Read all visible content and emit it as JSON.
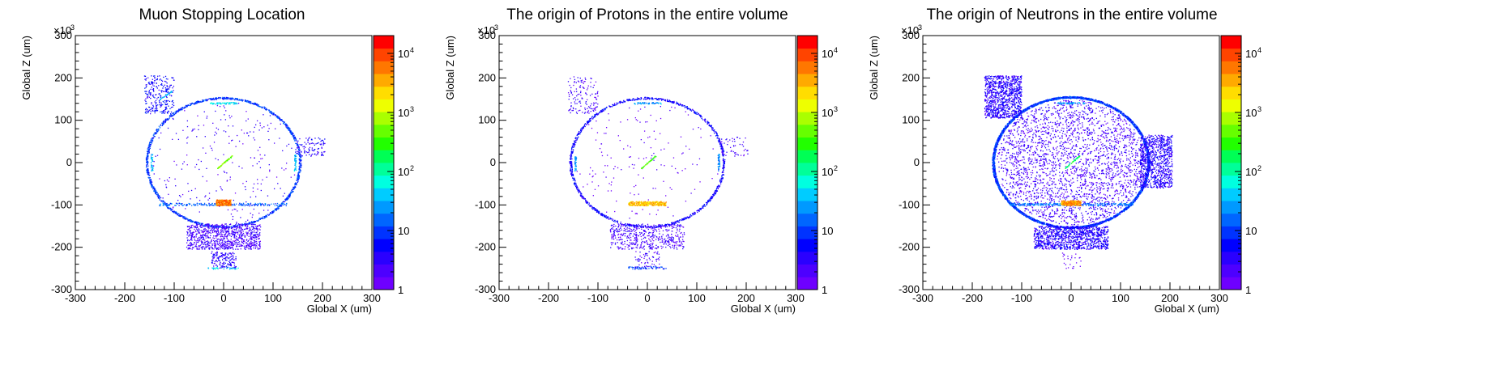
{
  "colors": {
    "palette": [
      "#6e00ff",
      "#4d00ff",
      "#2a00ff",
      "#0000ff",
      "#0033ff",
      "#0066ff",
      "#0099ff",
      "#00ccff",
      "#00ffe0",
      "#00ff99",
      "#00ff55",
      "#22ff00",
      "#66ff00",
      "#aaff00",
      "#eeff00",
      "#ffdd00",
      "#ffaa00",
      "#ff7700",
      "#ff4400",
      "#ff0000"
    ],
    "frame": "#000000",
    "background": "#ffffff"
  },
  "chart_data": [
    {
      "type": "heatmap",
      "title": "Muon Stopping Location",
      "xlabel": "Global X (um)",
      "ylabel": "Global Z (um)",
      "xlim": [
        -300,
        300
      ],
      "ylim": [
        -300,
        300
      ],
      "x_ticks": [
        "-300",
        "-200",
        "-100",
        "0",
        "100",
        "200",
        "300"
      ],
      "y_ticks": [
        "-300",
        "-200",
        "-100",
        "0",
        "100",
        "200",
        "300"
      ],
      "y_multiplier": "×10",
      "y_multiplier_exp": "3",
      "z_scale": "log",
      "z_range": [
        1,
        20000
      ],
      "z_ticks": [
        {
          "value": 1,
          "base": "1",
          "exp": ""
        },
        {
          "value": 10,
          "base": "10",
          "exp": ""
        },
        {
          "value": 100,
          "base": "10",
          "exp": "2"
        },
        {
          "value": 1000,
          "base": "10",
          "exp": "3"
        },
        {
          "value": 10000,
          "base": "10",
          "exp": "4"
        }
      ],
      "regions": [
        {
          "shape": "ellipse-outline",
          "cx": 0,
          "cy": 0,
          "rx": 155,
          "ry": 152,
          "density": 1300,
          "weight": 8
        },
        {
          "shape": "ellipse-fill",
          "cx": 0,
          "cy": 0,
          "rx": 150,
          "ry": 148,
          "density": 250,
          "weight": 2
        },
        {
          "shape": "box",
          "x": [
            -160,
            -100
          ],
          "y": [
            115,
            205
          ],
          "density": 260,
          "weight": 4
        },
        {
          "shape": "box",
          "x": [
            145,
            205
          ],
          "y": [
            15,
            60
          ],
          "density": 110,
          "weight": 3
        },
        {
          "shape": "box",
          "x": [
            -75,
            75
          ],
          "y": [
            -205,
            -145
          ],
          "density": 900,
          "weight": 2
        },
        {
          "shape": "box",
          "x": [
            -25,
            25
          ],
          "y": [
            -250,
            -210
          ],
          "density": 160,
          "weight": 3
        },
        {
          "shape": "line",
          "p1": [
            -130,
            148
          ],
          "p2": [
            -105,
            168
          ],
          "density": 40,
          "weight": 30
        },
        {
          "shape": "band",
          "x": [
            -130,
            130
          ],
          "y": [
            -102,
            -96
          ],
          "density": 200,
          "weight": 12
        },
        {
          "shape": "band",
          "x": [
            -15,
            15
          ],
          "y": [
            -102,
            -88
          ],
          "density": 260,
          "weight": 5000
        },
        {
          "shape": "band",
          "x": [
            -28,
            28
          ],
          "y": [
            138,
            142
          ],
          "density": 60,
          "weight": 40
        },
        {
          "shape": "band",
          "x": [
            -35,
            35
          ],
          "y": [
            -252,
            -248
          ],
          "density": 30,
          "weight": 40
        },
        {
          "shape": "band",
          "x": [
            -147,
            -143
          ],
          "y": [
            -20,
            20
          ],
          "density": 40,
          "weight": 30
        },
        {
          "shape": "band",
          "x": [
            143,
            147
          ],
          "y": [
            -20,
            20
          ],
          "density": 40,
          "weight": 30
        },
        {
          "shape": "line",
          "p1": [
            -12,
            -14
          ],
          "p2": [
            18,
            16
          ],
          "density": 60,
          "weight": 400
        }
      ]
    },
    {
      "type": "heatmap",
      "title": "The origin of Protons in the entire volume",
      "xlabel": "Global X (um)",
      "ylabel": "Global Z (um)",
      "xlim": [
        -300,
        300
      ],
      "ylim": [
        -300,
        300
      ],
      "x_ticks": [
        "-300",
        "-200",
        "-100",
        "0",
        "100",
        "200",
        "300"
      ],
      "y_ticks": [
        "-300",
        "-200",
        "-100",
        "0",
        "100",
        "200",
        "300"
      ],
      "y_multiplier": "×10",
      "y_multiplier_exp": "3",
      "z_scale": "log",
      "z_range": [
        1,
        20000
      ],
      "z_ticks": [
        {
          "value": 1,
          "base": "1",
          "exp": ""
        },
        {
          "value": 10,
          "base": "10",
          "exp": ""
        },
        {
          "value": 100,
          "base": "10",
          "exp": "2"
        },
        {
          "value": 1000,
          "base": "10",
          "exp": "3"
        },
        {
          "value": 10000,
          "base": "10",
          "exp": "4"
        }
      ],
      "regions": [
        {
          "shape": "ellipse-outline",
          "cx": 0,
          "cy": 0,
          "rx": 155,
          "ry": 152,
          "density": 1100,
          "weight": 4
        },
        {
          "shape": "ellipse-fill",
          "cx": 0,
          "cy": 0,
          "rx": 150,
          "ry": 148,
          "density": 160,
          "weight": 1
        },
        {
          "shape": "box",
          "x": [
            -160,
            -100
          ],
          "y": [
            115,
            205
          ],
          "density": 140,
          "weight": 2
        },
        {
          "shape": "box",
          "x": [
            145,
            205
          ],
          "y": [
            15,
            60
          ],
          "density": 50,
          "weight": 2
        },
        {
          "shape": "box",
          "x": [
            -75,
            75
          ],
          "y": [
            -205,
            -145
          ],
          "density": 500,
          "weight": 2
        },
        {
          "shape": "box",
          "x": [
            -25,
            25
          ],
          "y": [
            -250,
            -210
          ],
          "density": 60,
          "weight": 2
        },
        {
          "shape": "band",
          "x": [
            -38,
            38
          ],
          "y": [
            -252,
            -246
          ],
          "density": 60,
          "weight": 8
        },
        {
          "shape": "band",
          "x": [
            -38,
            38
          ],
          "y": [
            -102,
            -92
          ],
          "density": 300,
          "weight": 2500
        },
        {
          "shape": "band",
          "x": [
            -28,
            28
          ],
          "y": [
            138,
            142
          ],
          "density": 50,
          "weight": 20
        },
        {
          "shape": "band",
          "x": [
            -147,
            -143
          ],
          "y": [
            -20,
            20
          ],
          "density": 40,
          "weight": 20
        },
        {
          "shape": "band",
          "x": [
            143,
            147
          ],
          "y": [
            -20,
            20
          ],
          "density": 40,
          "weight": 20
        },
        {
          "shape": "line",
          "p1": [
            -12,
            -14
          ],
          "p2": [
            18,
            16
          ],
          "density": 50,
          "weight": 300
        }
      ]
    },
    {
      "type": "heatmap",
      "title": "The origin of Neutrons in the entire volume",
      "xlabel": "Global X (um)",
      "ylabel": "Global Z (um)",
      "xlim": [
        -300,
        300
      ],
      "ylim": [
        -300,
        300
      ],
      "x_ticks": [
        "-300",
        "-200",
        "-100",
        "0",
        "100",
        "200",
        "300"
      ],
      "y_ticks": [
        "-300",
        "-200",
        "-100",
        "0",
        "100",
        "200",
        "300"
      ],
      "y_multiplier": "×10",
      "y_multiplier_exp": "3",
      "z_scale": "log",
      "z_range": [
        1,
        20000
      ],
      "z_ticks": [
        {
          "value": 1,
          "base": "1",
          "exp": ""
        },
        {
          "value": 10,
          "base": "10",
          "exp": ""
        },
        {
          "value": 100,
          "base": "10",
          "exp": "2"
        },
        {
          "value": 1000,
          "base": "10",
          "exp": "3"
        },
        {
          "value": 10000,
          "base": "10",
          "exp": "4"
        }
      ],
      "regions": [
        {
          "shape": "ellipse-outline",
          "cx": 0,
          "cy": 0,
          "rx": 157,
          "ry": 154,
          "density": 3200,
          "weight": 8
        },
        {
          "shape": "ellipse-fill",
          "cx": 0,
          "cy": 0,
          "rx": 150,
          "ry": 148,
          "density": 2600,
          "weight": 2
        },
        {
          "shape": "box",
          "x": [
            -175,
            -100
          ],
          "y": [
            105,
            205
          ],
          "density": 1000,
          "weight": 3
        },
        {
          "shape": "box",
          "x": [
            140,
            205
          ],
          "y": [
            -60,
            65
          ],
          "density": 900,
          "weight": 3
        },
        {
          "shape": "box",
          "x": [
            -75,
            75
          ],
          "y": [
            -205,
            -150
          ],
          "density": 1100,
          "weight": 3
        },
        {
          "shape": "box",
          "x": [
            -20,
            20
          ],
          "y": [
            -250,
            -210
          ],
          "density": 25,
          "weight": 1
        },
        {
          "shape": "band",
          "x": [
            -125,
            125
          ],
          "y": [
            -102,
            -96
          ],
          "density": 300,
          "weight": 15
        },
        {
          "shape": "band",
          "x": [
            -20,
            20
          ],
          "y": [
            -102,
            -90
          ],
          "density": 300,
          "weight": 4000
        },
        {
          "shape": "band",
          "x": [
            -28,
            28
          ],
          "y": [
            138,
            142
          ],
          "density": 50,
          "weight": 25
        },
        {
          "shape": "line",
          "p1": [
            -12,
            -14
          ],
          "p2": [
            18,
            16
          ],
          "density": 40,
          "weight": 150
        }
      ]
    }
  ]
}
